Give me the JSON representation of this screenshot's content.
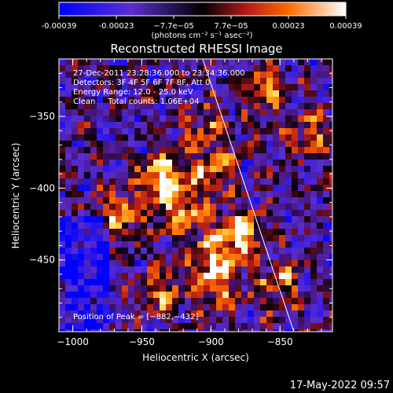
{
  "colorbar": {
    "ticks": [
      "-0.00039",
      "-0.00023",
      "−7.7e−05",
      "7.7e−05",
      "0.00023",
      "0.00039"
    ],
    "units": "(photons cm⁻² s⁻¹ asec⁻²)",
    "range": [
      -0.00039,
      0.00039
    ]
  },
  "chart_data": {
    "type": "heatmap",
    "title": "Reconstructed RHESSI Image",
    "xlabel": "Heliocentric X (arcsec)",
    "ylabel": "Heliocentric Y (arcsec)",
    "xlim": [
      -1010,
      -812
    ],
    "ylim": [
      -500,
      -310
    ],
    "x_ticks": [
      -1000,
      -950,
      -900,
      -850
    ],
    "y_ticks": [
      -350,
      -400,
      -450
    ],
    "x_tick_labels": [
      "−1000",
      "−950",
      "−900",
      "−850"
    ],
    "y_tick_labels": [
      "−350",
      "−400",
      "−450"
    ],
    "limb_line": [
      [
        -906,
        -310
      ],
      [
        -840,
        -500
      ]
    ],
    "peak": {
      "x": -882,
      "y": -432
    },
    "bright_sources": [
      {
        "x": -935,
        "y": -392,
        "intensity": 1.0
      },
      {
        "x": -880,
        "y": -432,
        "intensity": 1.0
      },
      {
        "x": -922,
        "y": -418,
        "intensity": 0.8
      },
      {
        "x": -965,
        "y": -418,
        "intensity": 0.7
      },
      {
        "x": -898,
        "y": -388,
        "intensity": 0.6
      },
      {
        "x": -902,
        "y": -450,
        "intensity": 0.7
      },
      {
        "x": -895,
        "y": -472,
        "intensity": 0.6
      },
      {
        "x": -852,
        "y": -468,
        "intensity": 0.6
      },
      {
        "x": -860,
        "y": -330,
        "intensity": 0.6
      },
      {
        "x": -830,
        "y": -362,
        "intensity": 0.5
      },
      {
        "x": -935,
        "y": -470,
        "intensity": 0.6
      },
      {
        "x": -905,
        "y": -358,
        "intensity": 0.5
      }
    ]
  },
  "info": {
    "time": "27-Dec-2011 23:28:36.000 to 23:34:36.000",
    "detectors": "Detectors: 3F 4F 5F 6F 7F 8F, Att 0",
    "energy": "Energy Range: 12.0 - 25.0 keV",
    "clean": "Clean     Total counts: 1.06E+04",
    "peak_label": "Position of Peak = [−882,−432]"
  },
  "footer": "17-May-2022 09:57"
}
